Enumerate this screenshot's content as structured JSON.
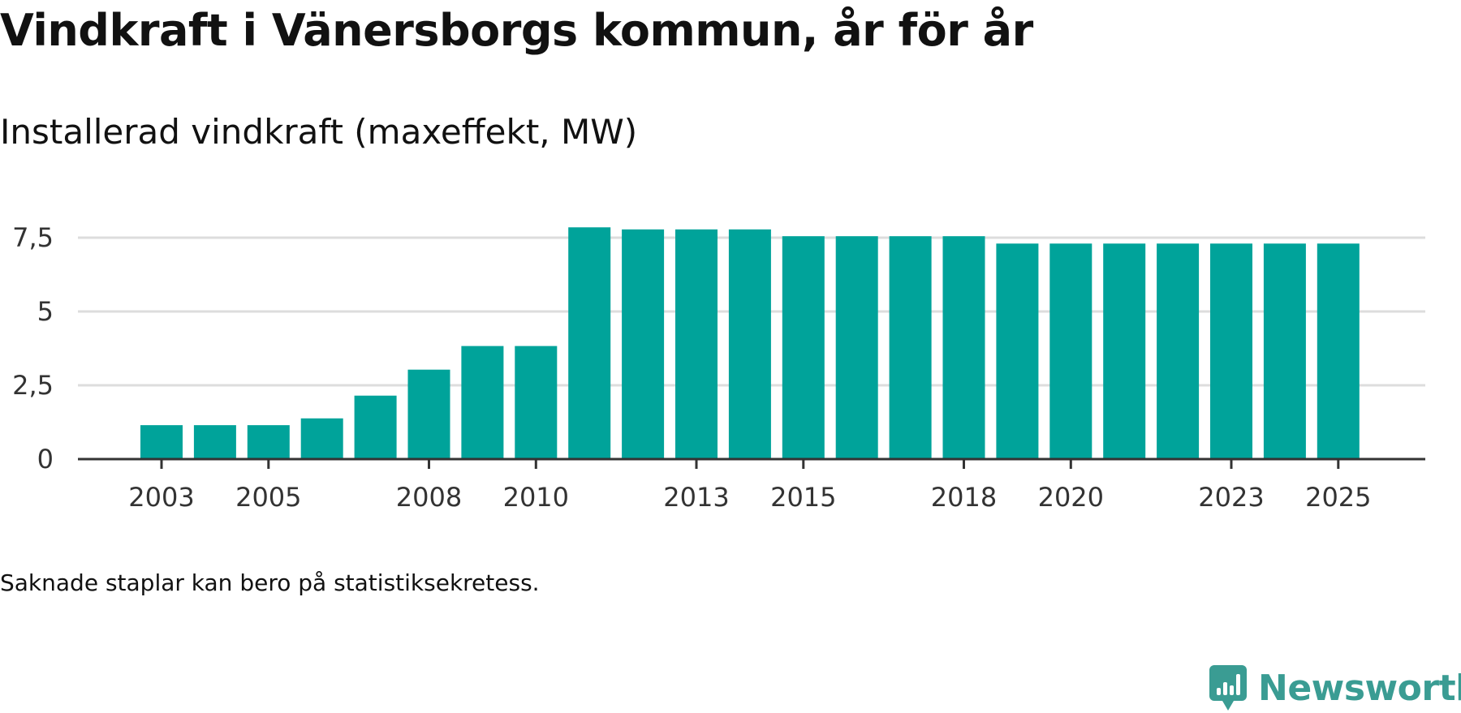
{
  "title": "Vindkraft i Vänersborgs kommun, år för år",
  "subtitle": "Installerad vindkraft (maxeffekt, MW)",
  "footnote": "Saknade staplar kan bero på statistiksekretess.",
  "brand": {
    "name": "Newsworthy",
    "color": "#3a9c93",
    "icon": "newsworthy-logo-icon"
  },
  "colors": {
    "bar": "#00a39a",
    "grid": "#dddddd",
    "axis": "#333333"
  },
  "chart_data": {
    "type": "bar",
    "title": "Vindkraft i Vänersborgs kommun, år för år",
    "ylabel": "Installerad vindkraft (maxeffekt, MW)",
    "xlabel": "",
    "categories": [
      "2003",
      "2004",
      "2005",
      "2006",
      "2007",
      "2008",
      "2009",
      "2010",
      "2011",
      "2012",
      "2013",
      "2014",
      "2015",
      "2016",
      "2017",
      "2018",
      "2019",
      "2020",
      "2021",
      "2022",
      "2023",
      "2024",
      "2025"
    ],
    "values": [
      1.15,
      1.15,
      1.15,
      1.38,
      2.15,
      3.03,
      3.83,
      3.83,
      7.85,
      7.78,
      7.78,
      7.78,
      7.55,
      7.55,
      7.55,
      7.55,
      7.3,
      7.3,
      7.3,
      7.3,
      7.3,
      7.3,
      7.3
    ],
    "ylim": [
      0,
      8
    ],
    "yticks": [
      0,
      2.5,
      5,
      7.5
    ],
    "ytick_labels": [
      "0",
      "2,5",
      "5",
      "7,5"
    ],
    "xtick_labels": [
      "2003",
      "2005",
      "2008",
      "2010",
      "2013",
      "2015",
      "2018",
      "2020",
      "2023",
      "2025"
    ],
    "grid": true,
    "legend": "none"
  }
}
